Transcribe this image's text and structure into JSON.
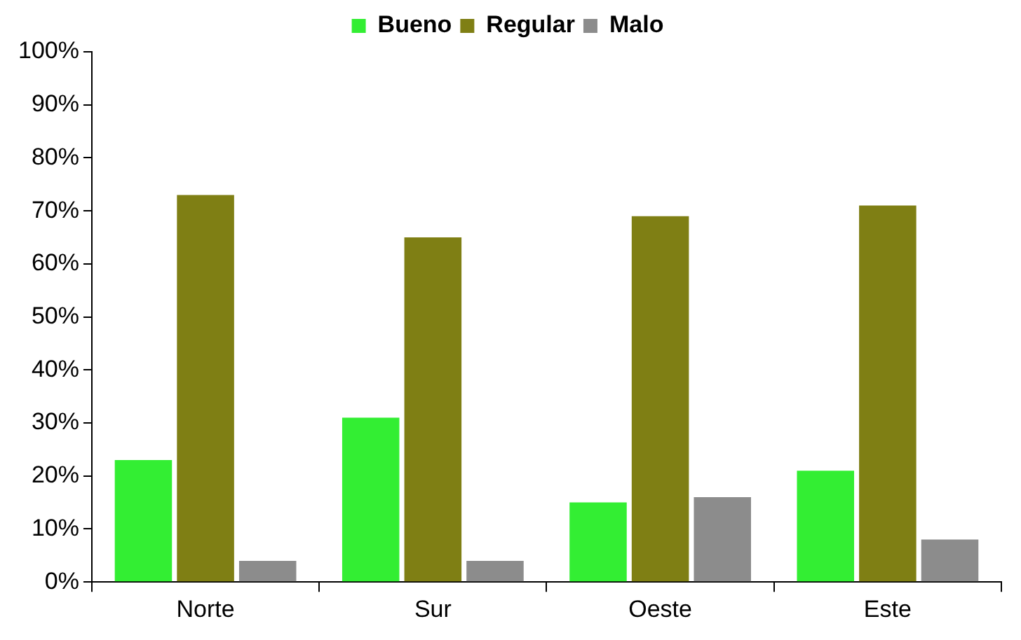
{
  "chart_data": {
    "type": "bar",
    "categories": [
      "Norte",
      "Sur",
      "Oeste",
      "Este"
    ],
    "series": [
      {
        "name": "Bueno",
        "color": "#33ee33",
        "values": [
          23,
          31,
          15,
          21
        ]
      },
      {
        "name": "Regular",
        "color": "#7f7f14",
        "values": [
          73,
          65,
          69,
          71
        ]
      },
      {
        "name": "Malo",
        "color": "#8c8c8c",
        "values": [
          4,
          4,
          16,
          8
        ]
      }
    ],
    "ylim": [
      0,
      100
    ],
    "yticks": [
      {
        "value": 0,
        "label": "0%"
      },
      {
        "value": 10,
        "label": "10%"
      },
      {
        "value": 20,
        "label": "20%"
      },
      {
        "value": 30,
        "label": "30%"
      },
      {
        "value": 40,
        "label": "40%"
      },
      {
        "value": 50,
        "label": "50%"
      },
      {
        "value": 60,
        "label": "60%"
      },
      {
        "value": 70,
        "label": "70%"
      },
      {
        "value": 80,
        "label": "80%"
      },
      {
        "value": 90,
        "label": "90%"
      },
      {
        "value": 100,
        "label": "100%"
      }
    ],
    "grid": false,
    "legend": "top"
  }
}
